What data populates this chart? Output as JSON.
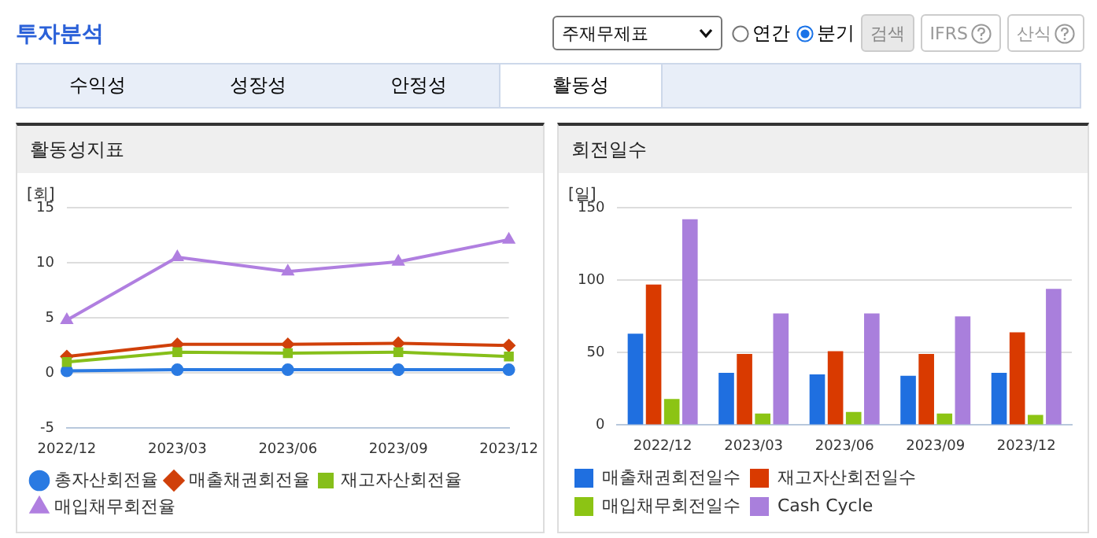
{
  "chart_data": [
    {
      "type": "line",
      "title": "활동성지표",
      "ylabel": "[회]",
      "annotations": [
        "투자분석",
        "주재무제표",
        "연간",
        "분기",
        "검색",
        "IFRS",
        "산식",
        "수익성",
        "성장성",
        "안정성",
        "활동성"
      ],
      "categories": [
        "2022/12",
        "2023/03",
        "2023/06",
        "2023/09",
        "2023/12"
      ],
      "series": [
        {
          "name": "총자산회전율",
          "color": "#2a7ae2",
          "marker": "circle",
          "values": [
            0.2,
            0.3,
            0.3,
            0.3,
            0.3
          ]
        },
        {
          "name": "매출채권회전율",
          "color": "#d0400a",
          "marker": "diamond",
          "values": [
            1.5,
            2.6,
            2.6,
            2.7,
            2.5
          ]
        },
        {
          "name": "재고자산회전율",
          "color": "#86bf1a",
          "marker": "square",
          "values": [
            1.0,
            1.9,
            1.8,
            1.9,
            1.5
          ]
        },
        {
          "name": "매입채무회전율",
          "color": "#b07fe0",
          "marker": "triangle",
          "values": [
            4.8,
            10.5,
            9.2,
            10.1,
            12.1
          ]
        }
      ],
      "ylim": [
        -5,
        15
      ],
      "yticks": [
        -5,
        0,
        5,
        10,
        15
      ],
      "grid": "y",
      "legend": "bottom",
      "line_style": "solid"
    },
    {
      "type": "bar",
      "title": "회전일수",
      "ylabel": "[일]",
      "categories": [
        "2022/12",
        "2023/03",
        "2023/06",
        "2023/09",
        "2023/12"
      ],
      "series": [
        {
          "name": "매출채권회전일수",
          "color": "#1f6fe0",
          "values": [
            63,
            36,
            35,
            34,
            36
          ]
        },
        {
          "name": "재고자산회전일수",
          "color": "#d93a00",
          "values": [
            97,
            49,
            51,
            49,
            64
          ]
        },
        {
          "name": "매입채무회전일수",
          "color": "#8cc414",
          "values": [
            18,
            8,
            9,
            8,
            7
          ]
        },
        {
          "name": "Cash Cycle",
          "color": "#a97fdc",
          "values": [
            142,
            77,
            77,
            75,
            94
          ]
        }
      ],
      "ylim": [
        0,
        150
      ],
      "yticks": [
        0,
        50,
        100,
        150
      ],
      "grid": "y",
      "legend": "bottom"
    }
  ]
}
